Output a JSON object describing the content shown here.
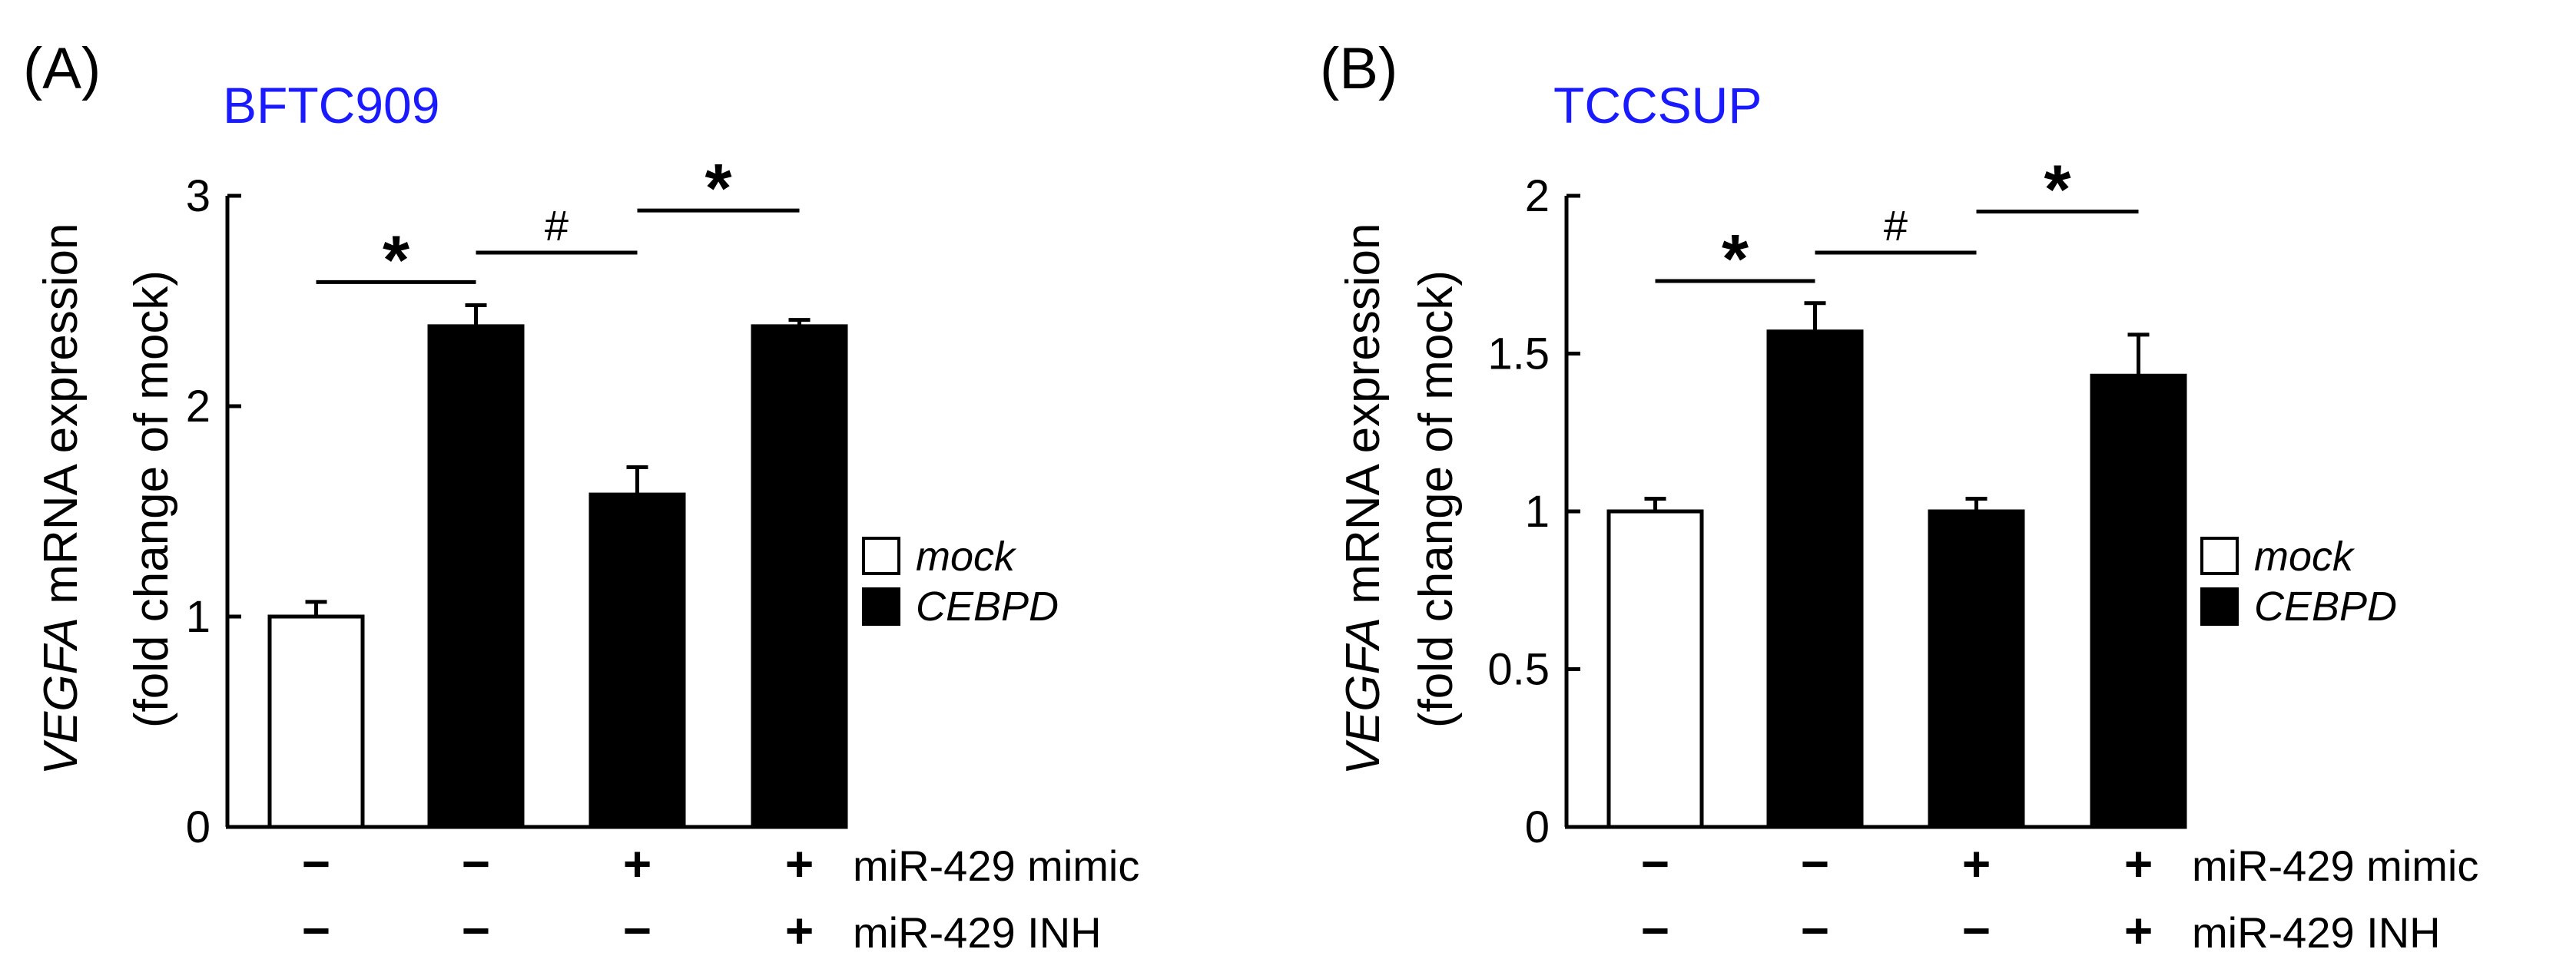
{
  "panels": [
    {
      "panel_label": "(A)",
      "title": "BFTC909",
      "ylabel_gene": "VEGFA",
      "ylabel_rest": " mRNA expression",
      "ylabel_line2": "(fold change of mock)"
    },
    {
      "panel_label": "(B)",
      "title": "TCCSUP",
      "ylabel_gene": "VEGFA",
      "ylabel_rest": " mRNA expression",
      "ylabel_line2": "(fold change of mock)"
    }
  ],
  "row_labels": [
    "miR-429 mimic",
    "miR-429 INH"
  ],
  "conditions": [
    {
      "mimic": "−",
      "inh": "−"
    },
    {
      "mimic": "−",
      "inh": "−"
    },
    {
      "mimic": "+",
      "inh": "−"
    },
    {
      "mimic": "+",
      "inh": "+"
    }
  ],
  "colors": {
    "title": "#1a1aff",
    "mock": "#ffffff",
    "cebpd": "#000000",
    "axis": "#000000"
  },
  "chart_data": [
    {
      "type": "bar",
      "title": "BFTC909",
      "categories": [
        "mock",
        "CEBPD",
        "CEBPD + miR-429 mimic",
        "CEBPD + miR-429 mimic + miR-429 INH"
      ],
      "values": [
        1.0,
        2.38,
        1.58,
        2.38
      ],
      "errors": [
        0.07,
        0.1,
        0.13,
        0.03
      ],
      "groups": [
        "mock",
        "CEBPD",
        "CEBPD",
        "CEBPD"
      ],
      "ylim": [
        0,
        3
      ],
      "yticks": [
        0,
        1,
        2,
        3
      ],
      "ytick_labels": [
        "0",
        "1",
        "2",
        "3"
      ],
      "legend": [
        {
          "name": "mock",
          "fill": "white"
        },
        {
          "name": "CEBPD",
          "fill": "black"
        }
      ],
      "legend_position": "right",
      "significance": [
        {
          "from": 0,
          "to": 1,
          "y": 2.59,
          "symbol": "*"
        },
        {
          "from": 1,
          "to": 2,
          "y": 2.73,
          "symbol": "#"
        },
        {
          "from": 2,
          "to": 3,
          "y": 2.93,
          "symbol": "*"
        }
      ]
    },
    {
      "type": "bar",
      "title": "TCCSUP",
      "categories": [
        "mock",
        "CEBPD",
        "CEBPD + miR-429 mimic",
        "CEBPD + miR-429 mimic + miR-429 INH"
      ],
      "values": [
        1.0,
        1.57,
        1.0,
        1.43
      ],
      "errors": [
        0.04,
        0.09,
        0.04,
        0.13
      ],
      "groups": [
        "mock",
        "CEBPD",
        "CEBPD",
        "CEBPD"
      ],
      "ylim": [
        0,
        2
      ],
      "yticks": [
        0,
        0.5,
        1,
        1.5,
        2
      ],
      "ytick_labels": [
        "0",
        "0.5",
        "1",
        "1.5",
        "2"
      ],
      "legend": [
        {
          "name": "mock",
          "fill": "white"
        },
        {
          "name": "CEBPD",
          "fill": "black"
        }
      ],
      "legend_position": "right",
      "significance": [
        {
          "from": 0,
          "to": 1,
          "y": 1.73,
          "symbol": "*"
        },
        {
          "from": 1,
          "to": 2,
          "y": 1.82,
          "symbol": "#"
        },
        {
          "from": 2,
          "to": 3,
          "y": 1.95,
          "symbol": "*"
        }
      ]
    }
  ]
}
